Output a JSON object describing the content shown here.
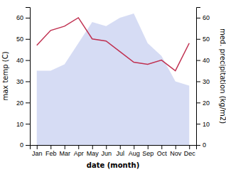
{
  "chart_data": {
    "type": "line",
    "categories": [
      "Jan",
      "Feb",
      "Mar",
      "Apr",
      "May",
      "Jun",
      "Jul",
      "Aug",
      "Sep",
      "Oct",
      "Nov",
      "Dec"
    ],
    "series": [
      {
        "type": "area",
        "color": "#c5cdf0",
        "values": [
          35,
          35,
          38,
          48,
          58,
          56,
          60,
          62,
          48,
          42,
          30,
          28
        ]
      },
      {
        "type": "line",
        "color": "#c03050",
        "values": [
          47,
          54,
          56,
          60,
          50,
          49,
          44,
          39,
          38,
          40,
          35,
          48
        ]
      }
    ],
    "ylabel": "max temp (C)",
    "y2label": "med. precipitation (kg/m2)",
    "xlabel": "date (month)",
    "ylim": [
      0,
      65
    ],
    "yticks": [
      0,
      10,
      20,
      30,
      40,
      50,
      60
    ],
    "y2lim": [
      0,
      65
    ],
    "y2ticks": [
      0,
      10,
      20,
      30,
      40,
      50,
      60
    ],
    "grid": false
  }
}
